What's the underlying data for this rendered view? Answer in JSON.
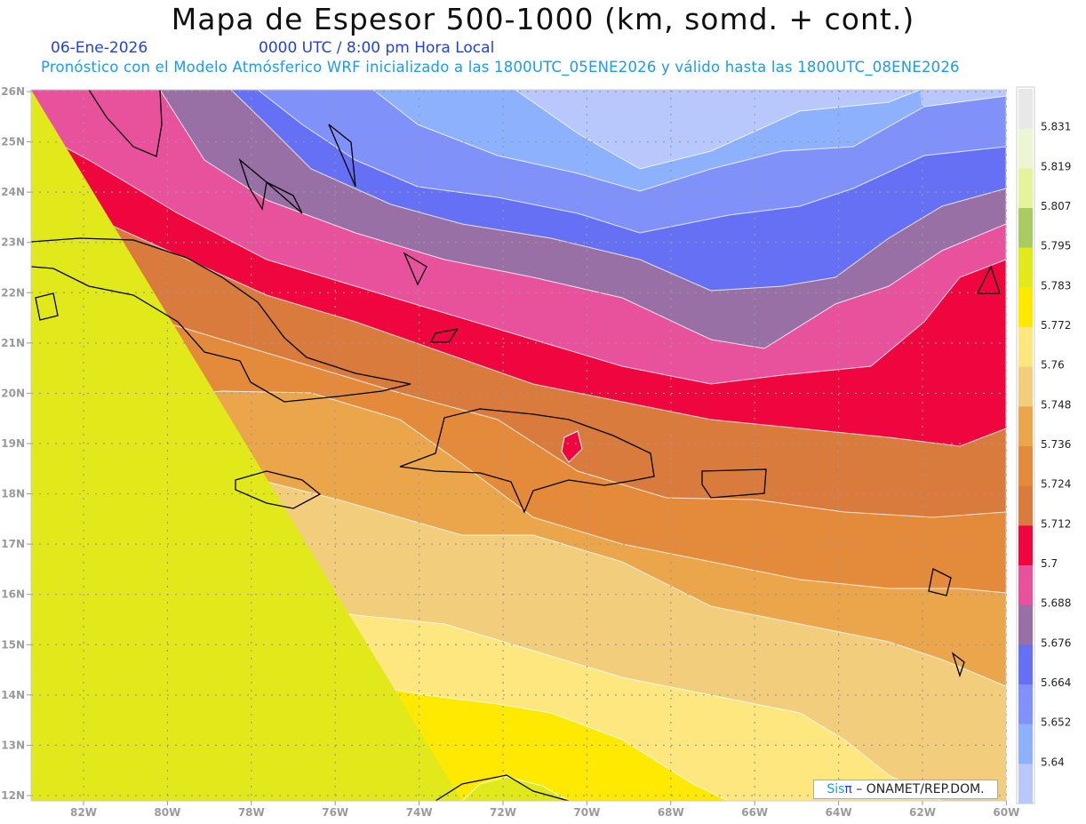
{
  "header": {
    "title": "Mapa de Espesor 500-1000 (km, somd. + cont.)",
    "date": "06-Ene-2026",
    "time": "0000 UTC / 8:00 pm Hora Local",
    "subtitle": "Pronóstico con el Modelo Atmósferico WRF inicializado a las 1800UTC_05ENE2026 y válido hasta las  1800UTC_08ENE2026"
  },
  "axes": {
    "lat_labels": [
      "26N",
      "25N",
      "24N",
      "23N",
      "22N",
      "21N",
      "20N",
      "19N",
      "18N",
      "17N",
      "16N",
      "15N",
      "14N",
      "13N",
      "12N"
    ],
    "lon_labels": [
      "82W",
      "80W",
      "78W",
      "76W",
      "74W",
      "72W",
      "70W",
      "68W",
      "66W",
      "64W",
      "62W",
      "60W"
    ]
  },
  "colorbar": {
    "colors": [
      "#e8e8e8",
      "#eef5d2",
      "#e5f39c",
      "#a9cc62",
      "#e1e91a",
      "#ffe900",
      "#fee77f",
      "#f2cd7c",
      "#eba64b",
      "#e48b3b",
      "#d97b3d",
      "#f0063f",
      "#e8519b",
      "#9870a5",
      "#6670f4",
      "#8091fa",
      "#8db1fc",
      "#b8c8fc"
    ],
    "labels": [
      "5.831",
      "5.819",
      "5.807",
      "5.795",
      "5.783",
      "5.772",
      "5.76",
      "5.748",
      "5.736",
      "5.724",
      "5.712",
      "5.7",
      "5.688",
      "5.676",
      "5.664",
      "5.652",
      "5.64"
    ]
  },
  "credit": {
    "sis": "Sis",
    "pi": "π",
    "rest": " – ONAMET/REP.DOM."
  }
}
